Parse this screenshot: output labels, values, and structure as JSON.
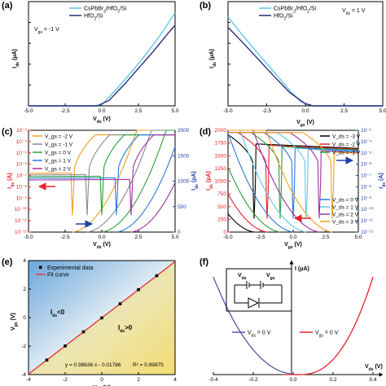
{
  "figure": {
    "panel_labels": [
      "(a)",
      "(b)",
      "(c)",
      "(d)",
      "(e)",
      "(f)"
    ],
    "colors": {
      "red": "#e8202a",
      "blue": "#1f3fa8",
      "cspb": "#5fc8e8",
      "hfo": "#2a2a7a"
    }
  },
  "chart_data": [
    {
      "panel": "a",
      "type": "line",
      "xlabel": "V_ds (V)",
      "ylabel": "I_ds (μA)",
      "xlim": [
        -5,
        5
      ],
      "ylim": [
        0,
        750
      ],
      "xticks": [
        "-5.0",
        "-2.5",
        "0.0",
        "2.5",
        "5.0"
      ],
      "yticks": [
        "0",
        "150",
        "300",
        "450",
        "600",
        "750"
      ],
      "annotation": "V_gs = -1 V",
      "series": [
        {
          "name": "CsPbBr3/HfO2/Si",
          "color": "#5fc8e8",
          "x": [
            -5,
            -0.5,
            0,
            1,
            2,
            3,
            4,
            5
          ],
          "y": [
            0,
            0,
            8,
            120,
            240,
            370,
            510,
            670
          ]
        },
        {
          "name": "HfO2/Si",
          "color": "#2a2a7a",
          "x": [
            -5,
            -0.3,
            0.5,
            1.5,
            2.5,
            3.5,
            4.5,
            5
          ],
          "y": [
            0,
            0,
            40,
            150,
            270,
            390,
            520,
            580
          ]
        }
      ]
    },
    {
      "panel": "b",
      "type": "line",
      "xlabel": "V_gs (V)",
      "ylabel": "I_ds (μA)",
      "xlim": [
        -5,
        5
      ],
      "ylim": [
        0,
        750
      ],
      "xticks": [
        "-5.0",
        "-2.5",
        "0.0",
        "2.5",
        "5.0"
      ],
      "yticks": [
        "0",
        "150",
        "300",
        "450",
        "600",
        "750"
      ],
      "annotation": "V_ds = 1 V",
      "series": [
        {
          "name": "CsPbBr3/HfO2/Si",
          "color": "#5fc8e8",
          "x": [
            -5,
            -4,
            -3,
            -2,
            -1,
            -0.3,
            0.5,
            5
          ],
          "y": [
            640,
            500,
            370,
            240,
            110,
            30,
            0,
            0
          ]
        },
        {
          "name": "HfO2/Si",
          "color": "#2a2a7a",
          "x": [
            -5,
            -4,
            -3,
            -2,
            -1,
            0,
            0.5,
            5
          ],
          "y": [
            565,
            450,
            330,
            210,
            95,
            15,
            0,
            0
          ]
        }
      ]
    },
    {
      "panel": "c",
      "type": "line",
      "xlabel": "V_ds (V)",
      "ylabel_left": "I_ds (A)",
      "ylabel_right": "I_ds (μA)",
      "xlim": [
        -5,
        5
      ],
      "ylim_left_log10": [
        -12,
        -3
      ],
      "ylim_right": [
        0,
        2000
      ],
      "xticks": [
        "-5.0",
        "-2.5",
        "0.0",
        "2.5",
        "5.0"
      ],
      "yticks_left": [
        "10⁻¹²",
        "10⁻¹¹",
        "10⁻¹⁰",
        "10⁻⁹",
        "10⁻⁸",
        "10⁻⁷",
        "10⁻⁶",
        "10⁻⁵",
        "10⁻⁴",
        "10⁻³"
      ],
      "yticks_right": [
        "0",
        "500",
        "1000",
        "1500",
        "2000"
      ],
      "legend_title": "V_gs",
      "series": [
        {
          "name": "V_gs = -2 V",
          "color": "#f0a020",
          "min_v": -2.0
        },
        {
          "name": "V_gs = -1 V",
          "color": "#8a8a8a",
          "min_v": -1.0
        },
        {
          "name": "V_gs = 0 V",
          "color": "#2a9e3a",
          "min_v": 0.0
        },
        {
          "name": "V_gs = 1 V",
          "color": "#2a7ad8",
          "min_v": 1.0
        },
        {
          "name": "V_gs = 2 V",
          "color": "#a030a0",
          "min_v": 2.0
        }
      ]
    },
    {
      "panel": "d",
      "type": "line",
      "xlabel": "V_gs (V)",
      "ylabel_left": "I_ds (μA)",
      "ylabel_right": "I_ds (A)",
      "xlim": [
        -5,
        5
      ],
      "ylim_left": [
        0,
        2000
      ],
      "ylim_right_log10": [
        -12,
        -3
      ],
      "xticks": [
        "-5.0",
        "-2.5",
        "0.0",
        "2.5",
        "5.0"
      ],
      "yticks_left": [
        "0",
        "250",
        "500",
        "750",
        "1000",
        "1250",
        "1500",
        "1750",
        "2000"
      ],
      "yticks_right": [
        "10⁻¹²",
        "10⁻¹¹",
        "10⁻¹⁰",
        "10⁻⁹",
        "10⁻⁸",
        "10⁻⁷",
        "10⁻⁶",
        "10⁻⁵",
        "10⁻⁴",
        "10⁻³"
      ],
      "series": [
        {
          "name": "V_ds = -3 V",
          "color": "#000000",
          "min_v": -3.0
        },
        {
          "name": "V_ds = -2 V",
          "color": "#e8202a",
          "min_v": -2.0
        },
        {
          "name": "V_ds = -1 V",
          "color": "#2a9e3a",
          "min_v": -1.0
        },
        {
          "name": "V_ds = 0 V",
          "color": "#2a7ad8",
          "min_v": 0.0
        },
        {
          "name": "V_ds = 1 V",
          "color": "#5fc8e8",
          "min_v": 1.0
        },
        {
          "name": "V_ds = 2 V",
          "color": "#a030a0",
          "min_v": 2.0
        },
        {
          "name": "V_ds = 3 V",
          "color": "#f0a020",
          "min_v": 3.0
        }
      ]
    },
    {
      "panel": "e",
      "type": "scatter",
      "xlabel": "V_ds (V)",
      "ylabel": "V_gs (V)",
      "xlim": [
        -4,
        4
      ],
      "ylim": [
        -4,
        4
      ],
      "xticks": [
        "-4",
        "-2",
        "0",
        "2",
        "4"
      ],
      "yticks": [
        "-4",
        "-2",
        "0",
        "2",
        "4"
      ],
      "legend": [
        "Experimental data",
        "Fit curve"
      ],
      "region_labels": [
        "I_ds<0",
        "I_ds>0"
      ],
      "equation": "y = 0.98636 x - 0.01786",
      "r_squared": "R² = 0.99975",
      "x": [
        -3,
        -2,
        -1,
        0,
        1,
        2,
        3
      ],
      "y": [
        -2.98,
        -1.99,
        -1.0,
        -0.02,
        0.97,
        1.96,
        2.94
      ],
      "fit": {
        "slope": 0.98636,
        "intercept": -0.01786
      }
    },
    {
      "panel": "f",
      "type": "line",
      "xlabel": "V_ds (V)",
      "ylabel": "I (μA)",
      "xlim": [
        -0.4,
        0.4
      ],
      "xticks": [
        "-0.4",
        "-0.2",
        "0.0",
        "0.2",
        "0.4"
      ],
      "series": [
        {
          "name": "V_ds = 0 V",
          "color": "#5058a8"
        },
        {
          "name": "V_gs = 0 V",
          "color": "#e8202a"
        }
      ],
      "circuit_labels": [
        "V_ds",
        "V_gs"
      ]
    }
  ]
}
